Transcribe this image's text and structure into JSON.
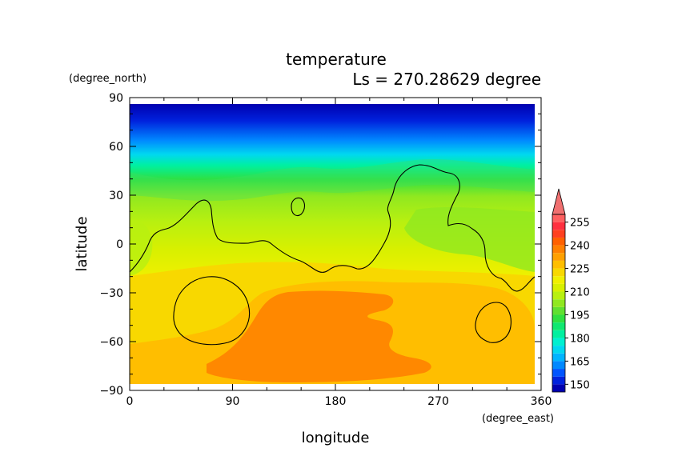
{
  "chart_data": {
    "type": "heatmap",
    "title": "temperature",
    "subtitle": "Ls = 270.28629 degree",
    "xlabel": "longitude",
    "ylabel": "latitude",
    "x_unit": "(degree_east)",
    "y_unit": "(degree_north)",
    "xlim": [
      0,
      360
    ],
    "ylim": [
      -90,
      90
    ],
    "x_ticks": [
      "0",
      "90",
      "180",
      "270",
      "360"
    ],
    "y_ticks": [
      "90",
      "60",
      "30",
      "0",
      "−30",
      "−60",
      "−90"
    ],
    "colorbar": {
      "levels": [
        145,
        150,
        155,
        160,
        165,
        170,
        175,
        180,
        185,
        190,
        195,
        200,
        205,
        210,
        215,
        220,
        225,
        230,
        235,
        240,
        245,
        250,
        255,
        260
      ],
      "tick_labels": [
        "150",
        "165",
        "180",
        "195",
        "210",
        "225",
        "240",
        "255"
      ],
      "colors": [
        "#0000b0",
        "#0022dd",
        "#0055ff",
        "#0088ff",
        "#00b4ff",
        "#00d8f0",
        "#00f0d0",
        "#00f0a0",
        "#10e870",
        "#30e040",
        "#60e030",
        "#90e820",
        "#b8f010",
        "#d8f000",
        "#f0f000",
        "#f8d800",
        "#ffbe00",
        "#ffa000",
        "#ff8000",
        "#ff6000",
        "#ff4020",
        "#ff3040",
        "#ff6060"
      ],
      "extend_color": "#f07070"
    },
    "grid": false
  }
}
